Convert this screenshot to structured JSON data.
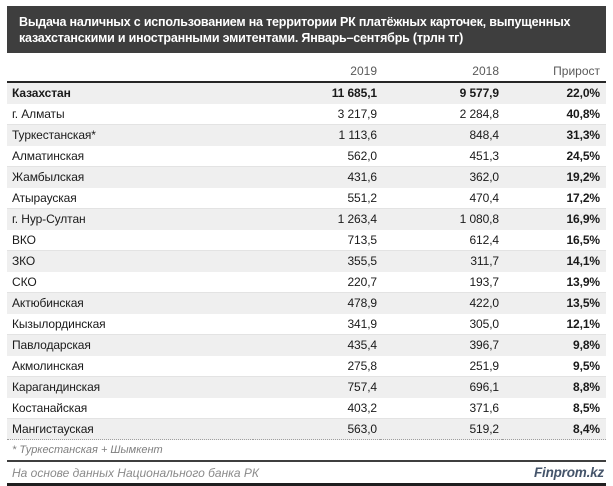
{
  "title": "Выдача наличных с использованием на территории РК платёжных карточек, выпущенных казахстанскими и иностранными эмитентами. Январь–сентябрь  (трлн тг)",
  "table": {
    "columns": [
      "",
      "2019",
      "2018",
      "Прирост"
    ],
    "rows": [
      {
        "region": "Казахстан",
        "v2019": "11 685,1",
        "v2018": "9 577,9",
        "growth": "22,0%",
        "emphasis": true
      },
      {
        "region": "г. Алматы",
        "v2019": "3 217,9",
        "v2018": "2 284,8",
        "growth": "40,8%"
      },
      {
        "region": "Туркестанская*",
        "v2019": "1 113,6",
        "v2018": "848,4",
        "growth": "31,3%"
      },
      {
        "region": "Алматинская",
        "v2019": "562,0",
        "v2018": "451,3",
        "growth": "24,5%"
      },
      {
        "region": "Жамбылская",
        "v2019": "431,6",
        "v2018": "362,0",
        "growth": "19,2%"
      },
      {
        "region": "Атырауская",
        "v2019": "551,2",
        "v2018": "470,4",
        "growth": "17,2%"
      },
      {
        "region": "г. Нур-Султан",
        "v2019": "1 263,4",
        "v2018": "1 080,8",
        "growth": "16,9%"
      },
      {
        "region": "ВКО",
        "v2019": "713,5",
        "v2018": "612,4",
        "growth": "16,5%"
      },
      {
        "region": "ЗКО",
        "v2019": "355,5",
        "v2018": "311,7",
        "growth": "14,1%"
      },
      {
        "region": "СКО",
        "v2019": "220,7",
        "v2018": "193,7",
        "growth": "13,9%"
      },
      {
        "region": "Актюбинская",
        "v2019": "478,9",
        "v2018": "422,0",
        "growth": "13,5%"
      },
      {
        "region": "Кызылординская",
        "v2019": "341,9",
        "v2018": "305,0",
        "growth": "12,1%"
      },
      {
        "region": "Павлодарская",
        "v2019": "435,4",
        "v2018": "396,7",
        "growth": "9,8%"
      },
      {
        "region": "Акмолинская",
        "v2019": "275,8",
        "v2018": "251,9",
        "growth": "9,5%"
      },
      {
        "region": "Карагандинская",
        "v2019": "757,4",
        "v2018": "696,1",
        "growth": "8,8%"
      },
      {
        "region": "Костанайская",
        "v2019": "403,2",
        "v2018": "371,6",
        "growth": "8,5%"
      },
      {
        "region": "Мангистауская",
        "v2019": "563,0",
        "v2018": "519,2",
        "growth": "8,4%"
      }
    ]
  },
  "footnote": "* Туркестанская + Шымкент",
  "footer": {
    "source": "На основе данных Национального банка РК",
    "brand": "Finprom.kz"
  },
  "colors": {
    "title_bar_bg": "#3e3e3e",
    "title_text": "#ffffff",
    "header_text": "#595959",
    "band_gray": "#efefef",
    "brand_accent": "#44546a",
    "heavy_rule": "#262626"
  },
  "chart_data": {
    "type": "table",
    "title": "Выдача наличных с использованием на территории РК платёжных карточек, выпущенных казахстанскими и иностранными эмитентами. Январь–сентябрь (трлн тг)",
    "categories": [
      "Казахстан",
      "г. Алматы",
      "Туркестанская*",
      "Алматинская",
      "Жамбылская",
      "Атырауская",
      "г. Нур-Султан",
      "ВКО",
      "ЗКО",
      "СКО",
      "Актюбинская",
      "Кызылординская",
      "Павлодарская",
      "Акмолинская",
      "Карагандинская",
      "Костанайская",
      "Мангистауская"
    ],
    "series": [
      {
        "name": "2019",
        "values": [
          11685.1,
          3217.9,
          1113.6,
          562.0,
          431.6,
          551.2,
          1263.4,
          713.5,
          355.5,
          220.7,
          478.9,
          341.9,
          435.4,
          275.8,
          757.4,
          403.2,
          563.0
        ]
      },
      {
        "name": "2018",
        "values": [
          9577.9,
          2284.8,
          848.4,
          451.3,
          362.0,
          470.4,
          1080.8,
          612.4,
          311.7,
          193.7,
          422.0,
          305.0,
          396.7,
          251.9,
          696.1,
          371.6,
          519.2
        ]
      },
      {
        "name": "Прирост",
        "unit": "%",
        "values": [
          22.0,
          40.8,
          31.3,
          24.5,
          19.2,
          17.2,
          16.9,
          16.5,
          14.1,
          13.9,
          13.5,
          12.1,
          9.8,
          9.5,
          8.8,
          8.5,
          8.4
        ]
      }
    ],
    "footnote": "* Туркестанская + Шымкент",
    "source": "На основе данных Национального банка РК"
  }
}
